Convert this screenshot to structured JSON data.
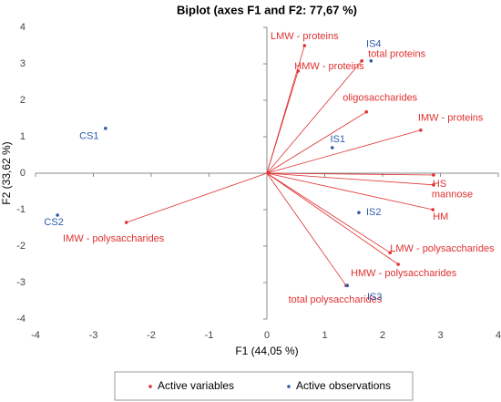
{
  "chart_data": {
    "type": "biplot",
    "title": "Biplot (axes F1 and F2: 77,67 %)",
    "x_label": "F1 (44,05 %)",
    "y_label": "F2 (33,62 %)",
    "xlim": [
      -4,
      4
    ],
    "xticks": [
      -4,
      -3,
      -2,
      -1,
      0,
      1,
      2,
      3,
      4
    ],
    "ylim": [
      -4,
      4
    ],
    "yticks": [
      -4,
      -3,
      -2,
      -1,
      0,
      1,
      2,
      3,
      4
    ],
    "series": [
      {
        "name": "Active variables",
        "color": "#e03030",
        "vectors": true,
        "labels": [
          "LMW - proteins",
          "total proteins",
          "HMW - proteins",
          "oligosaccharides",
          "IMW - proteins",
          "HS",
          "mannose",
          "HM",
          "LMW - polysaccharides",
          "HMW - polysaccharides",
          "total polysaccharides",
          "IMW - polysaccharides"
        ],
        "x": [
          0.65,
          1.64,
          0.54,
          1.72,
          2.66,
          2.88,
          2.88,
          2.87,
          2.13,
          2.27,
          1.37,
          -2.43
        ],
        "y": [
          3.5,
          3.08,
          2.8,
          1.68,
          1.18,
          -0.05,
          -0.32,
          -1.0,
          -2.18,
          -2.5,
          -3.08,
          -1.35
        ]
      },
      {
        "name": "Active observations",
        "color": "#2a5caa",
        "vectors": false,
        "labels": [
          "CS1",
          "CS2",
          "IS1",
          "IS2",
          "IS3",
          "IS4"
        ],
        "x": [
          -2.79,
          -3.62,
          1.13,
          1.59,
          1.39,
          1.8
        ],
        "y": [
          1.23,
          -1.15,
          0.7,
          -1.08,
          -3.08,
          3.08
        ]
      }
    ]
  }
}
